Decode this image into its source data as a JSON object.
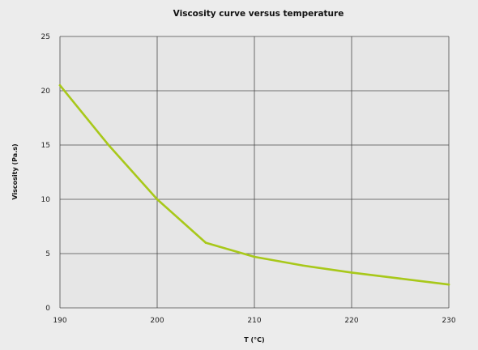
{
  "chart_data": {
    "type": "line",
    "title": "Viscosity curve versus temperature",
    "xlabel": "T (°C)",
    "ylabel": "Viscosity (Pa.s)",
    "xlim": [
      190,
      230
    ],
    "ylim": [
      0,
      25
    ],
    "x_ticks": [
      "190",
      "200",
      "210",
      "220",
      "230"
    ],
    "y_ticks": [
      "0",
      "5",
      "10",
      "15",
      "20",
      "25"
    ],
    "grid": true,
    "series": [
      {
        "color": "#a8c81a",
        "x": [
          190,
          195,
          200,
          205,
          210,
          215,
          220,
          225,
          230
        ],
        "y": [
          20.5,
          15,
          10,
          6,
          4.7,
          3.9,
          3.25,
          2.7,
          2.15
        ]
      }
    ],
    "colors": {
      "background": "#ececec",
      "plot_background": "#e6e6e6",
      "grid": "#4a4a4a"
    }
  }
}
